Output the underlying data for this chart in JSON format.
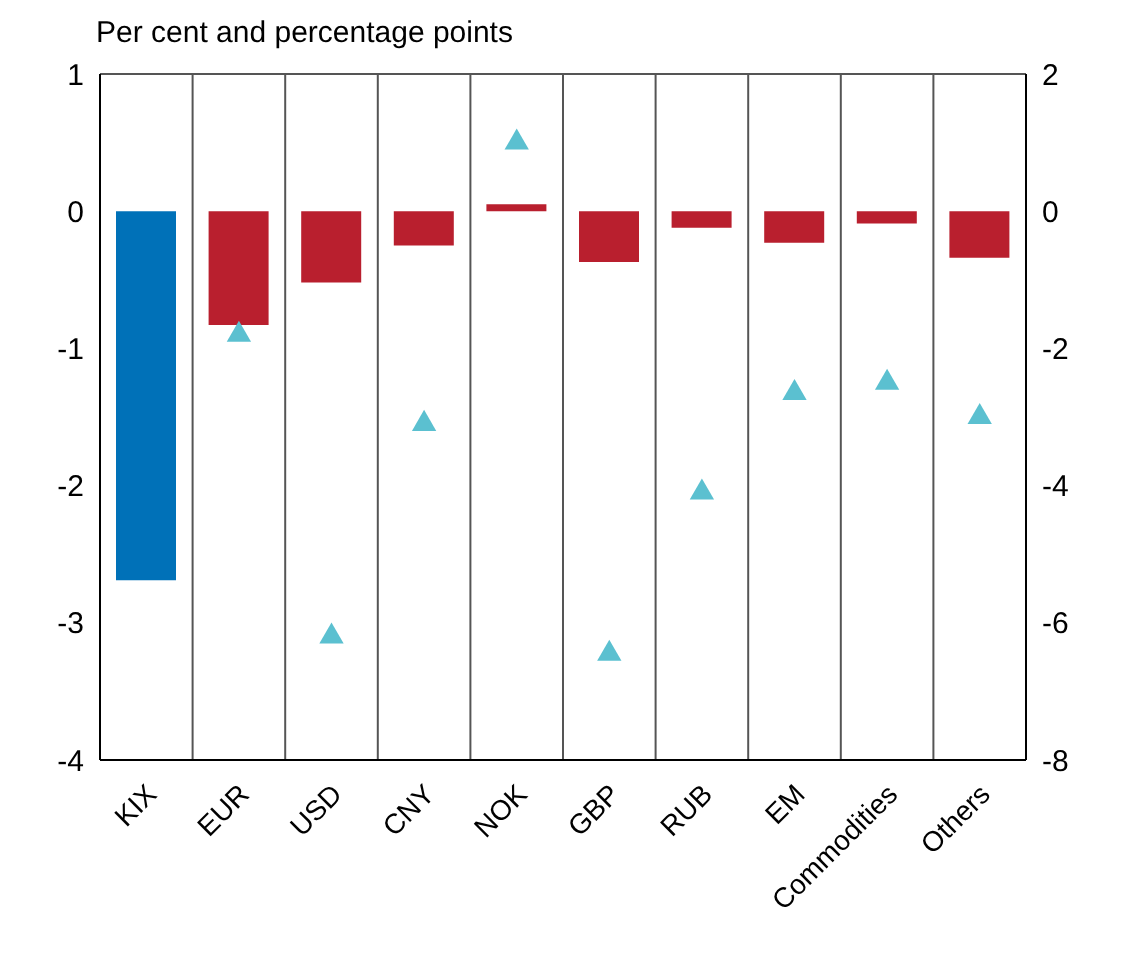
{
  "chart_data": {
    "type": "bar",
    "subtitle": "Per cent and percentage points",
    "categories": [
      "KIX",
      "EUR",
      "USD",
      "CNY",
      "NOK",
      "GBP",
      "RUB",
      "EM",
      "Commodities",
      "Others"
    ],
    "series": [
      {
        "colors": [
          "#0071b8",
          "#b91f2e",
          "#b91f2e",
          "#b91f2e",
          "#b91f2e",
          "#b91f2e",
          "#b91f2e",
          "#b91f2e",
          "#b91f2e",
          "#b91f2e"
        ],
        "values": [
          -2.69,
          -0.83,
          -0.52,
          -0.25,
          0.05,
          -0.37,
          -0.12,
          -0.23,
          -0.09,
          -0.34
        ]
      },
      {
        "type": "scatter",
        "axis": "y2",
        "color": "#5bc0d0",
        "marker": "triangle",
        "values": [
          null,
          -1.8,
          -6.2,
          -3.1,
          1.0,
          -6.45,
          -4.1,
          -2.65,
          -2.5,
          -3.0
        ]
      }
    ],
    "ylim": [
      -4,
      1
    ],
    "yticks": [
      -4,
      -3,
      -2,
      -1,
      0,
      1
    ],
    "y2lim": [
      -8,
      2
    ],
    "y2ticks": [
      -8,
      -6,
      -4,
      -2,
      0,
      2
    ],
    "grid": true
  }
}
